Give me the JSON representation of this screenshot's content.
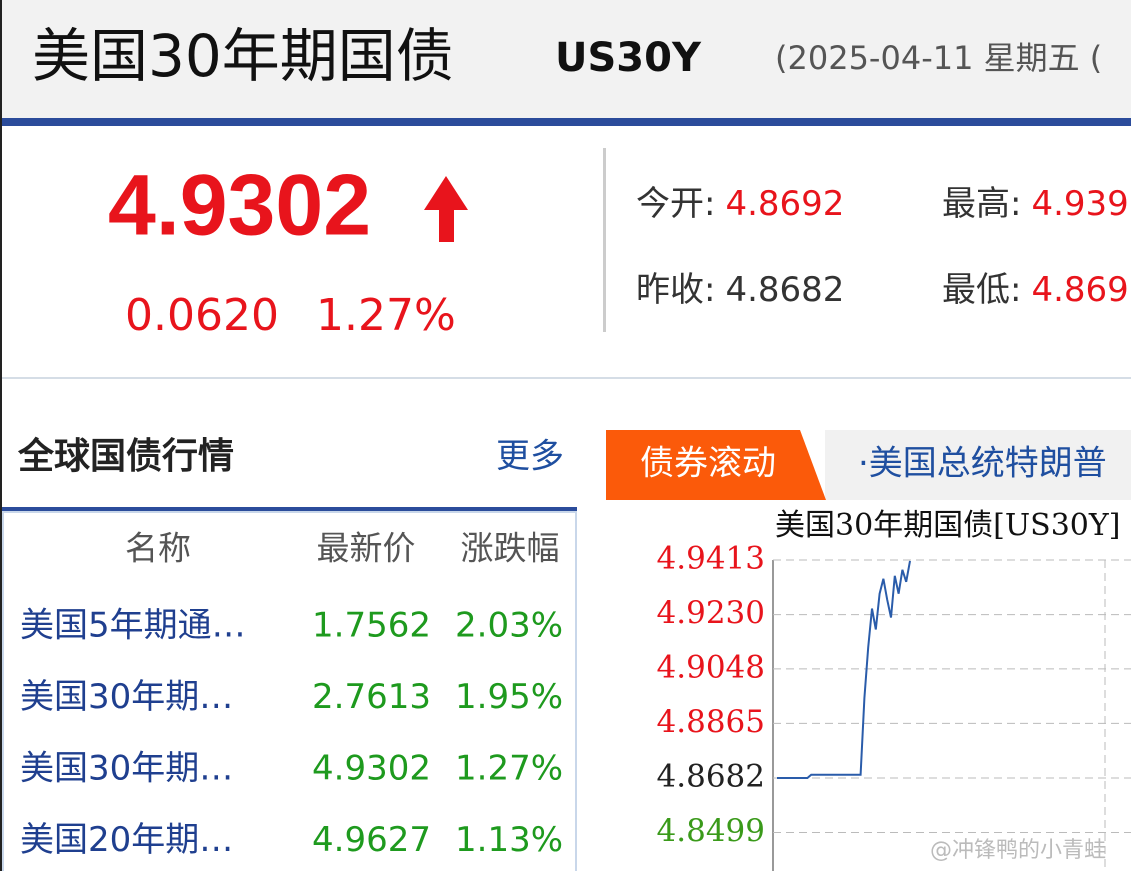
{
  "header": {
    "title": "美国30年期国债",
    "code": "US30Y",
    "date": "(2025-04-11 星期五 ("
  },
  "quote": {
    "price": "4.9302",
    "change": "0.0620",
    "change_pct": "1.27%"
  },
  "stats": [
    {
      "label": "今开:",
      "value": "4.8692"
    },
    {
      "label": "最高:",
      "value": "4.939"
    },
    {
      "label": "昨收:",
      "value": "4.8682"
    },
    {
      "label": "最低:",
      "value": "4.869"
    }
  ],
  "section": {
    "title": "全球国债行情",
    "more": "更多"
  },
  "table": {
    "columns": [
      "名称",
      "最新价",
      "涨跌幅"
    ],
    "rows": [
      [
        "美国5年期通…",
        "1.7562",
        "2.03%"
      ],
      [
        "美国30年期…",
        "2.7613",
        "1.95%"
      ],
      [
        "美国30年期…",
        "4.9302",
        "1.27%"
      ],
      [
        "美国20年期…",
        "4.9627",
        "1.13%"
      ]
    ]
  },
  "ticker": {
    "tab": "债券滚动",
    "text": "·美国总统特朗普"
  },
  "chart": {
    "type": "line",
    "title": "美国30年期国债[US30Y]",
    "color": "#2a5caa",
    "ylim": [
      4.837,
      4.9413
    ],
    "yticks": [
      4.9413,
      {
        "value": 4.923,
        "label": "4.9230"
      },
      4.9048,
      4.8865,
      4.8682,
      4.8499
    ],
    "values": [
      4.8682,
      4.8682,
      4.8682,
      4.8682,
      4.8682,
      4.8682,
      4.8682,
      4.8682,
      4.8682,
      4.8693,
      4.8693,
      4.8693,
      4.8693,
      4.8693,
      4.8693,
      4.8693,
      4.8693,
      4.8693,
      4.8693,
      4.8693,
      4.8693,
      4.8693,
      4.8693,
      4.895,
      4.912,
      4.925,
      4.918,
      4.93,
      4.935,
      4.928,
      4.922,
      4.936,
      4.93,
      4.938,
      4.934,
      4.941
    ]
  },
  "watermark": "@冲锋鸭的小青蛙"
}
